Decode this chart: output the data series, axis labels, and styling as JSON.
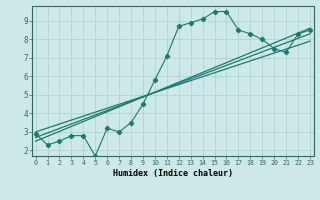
{
  "main_line_x": [
    0,
    1,
    2,
    3,
    4,
    5,
    6,
    7,
    8,
    9,
    10,
    11,
    12,
    13,
    14,
    15,
    16,
    17,
    18,
    19,
    20,
    21,
    22,
    23
  ],
  "main_line_y": [
    2.9,
    2.3,
    2.5,
    2.8,
    2.8,
    1.7,
    3.2,
    3.0,
    3.5,
    4.5,
    5.8,
    7.1,
    8.7,
    8.9,
    9.1,
    9.5,
    9.5,
    8.5,
    8.3,
    8.0,
    7.5,
    7.3,
    8.3,
    8.5
  ],
  "trend_line1": [
    [
      0,
      2.5
    ],
    [
      23,
      8.6
    ]
  ],
  "trend_line2": [
    [
      0,
      2.7
    ],
    [
      23,
      8.3
    ]
  ],
  "trend_line3": [
    [
      0,
      3.0
    ],
    [
      23,
      7.9
    ]
  ],
  "line_color": "#1a7a6e",
  "bg_color": "#cce8e8",
  "grid_color": "#aacfcf",
  "xlabel": "Humidex (Indice chaleur)",
  "ytick_vals": [
    2,
    3,
    4,
    5,
    6,
    7,
    8,
    9
  ],
  "xtick_vals": [
    0,
    1,
    2,
    3,
    4,
    5,
    6,
    7,
    8,
    9,
    10,
    11,
    12,
    13,
    14,
    15,
    16,
    17,
    18,
    19,
    20,
    21,
    22,
    23
  ],
  "xlim": [
    -0.3,
    23.3
  ],
  "ylim": [
    1.7,
    9.8
  ]
}
